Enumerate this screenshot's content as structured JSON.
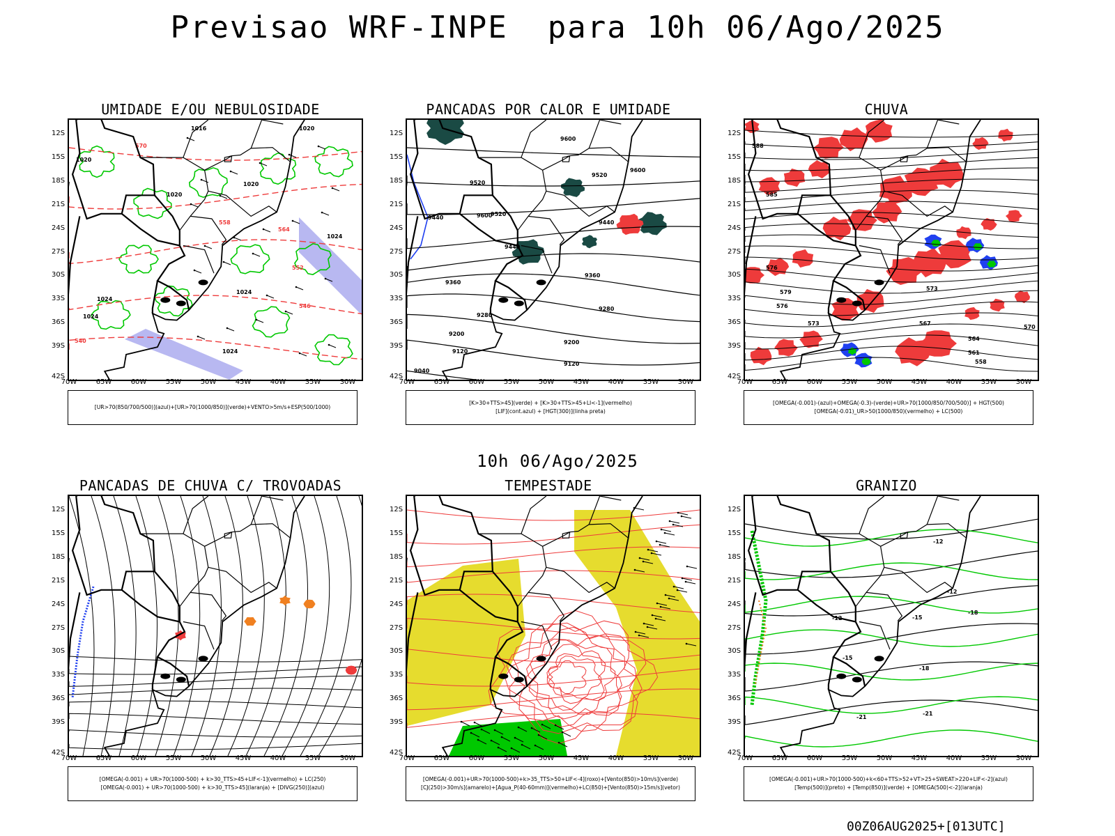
{
  "title": "Previsao WRF-INPE  para 10h 06/Ago/2025",
  "center_date": "10h 06/Ago/2025",
  "footer": "00Z06AUG2025+[013UTC]",
  "axes": {
    "lat_ticks": [
      "12S",
      "15S",
      "18S",
      "21S",
      "24S",
      "27S",
      "30S",
      "33S",
      "36S",
      "39S",
      "42S"
    ],
    "lon_ticks": [
      "70W",
      "65W",
      "60W",
      "55W",
      "50W",
      "45W",
      "40W",
      "35W",
      "30W"
    ]
  },
  "colors": {
    "green": "#00c800",
    "red": "#ee3b3b",
    "blue": "#2040f0",
    "lavender": "#a0a0ec",
    "dark_teal": "#1a4a44",
    "orange": "#f08020",
    "yellow": "#e6dc2e",
    "black": "#000000"
  },
  "panels": [
    {
      "title": "UMIDADE E/OU NEBULOSIDADE",
      "legend": [
        "[UR>70(850/700/500)](azul)+[UR>70(1000/850)](verde)+VENTO>5m/s+ESP(500/1000)"
      ],
      "contour_labels": [
        "1016",
        "1020",
        "1020",
        "1020",
        "1020",
        "1024",
        "1024",
        "1024",
        "1024",
        "1024",
        "570",
        "564",
        "558",
        "552",
        "546",
        "540"
      ]
    },
    {
      "title": "PANCADAS POR CALOR E UMIDADE",
      "legend": [
        "[K>30+TTS>45](verde) + [K>30+TTS>45+LI<-1](vermelho)",
        "[LIF](cont.azul) + [HGT(300)](linha preta)"
      ],
      "contour_labels": [
        "9600",
        "9600",
        "9520",
        "9520",
        "9600",
        "9440",
        "9440",
        "9520",
        "9440",
        "9360",
        "9360",
        "9280",
        "9280",
        "9200",
        "9200",
        "9120",
        "9120",
        "9040"
      ]
    },
    {
      "title": "CHUVA",
      "legend": [
        "[OMEGA(-0.001)-(azul)+OMEGA(-0.3)-(verde)+UR>70(1000/850/700/500)] + HGT(500)",
        "[OMEGA(-0.01)_UR>50(1000/850)(vermelho) + LC(500)"
      ],
      "contour_labels": [
        "588",
        "585",
        "576",
        "579",
        "576",
        "573",
        "570",
        "567",
        "564",
        "561",
        "558",
        "573"
      ]
    },
    {
      "title": "PANCADAS DE CHUVA C/ TROVOADAS",
      "legend": [
        "[OMEGA(-0.001) + UR>70(1000-500) + k>30_TTS>45+LIF<-1](vermelho) + LC(250)",
        "[OMEGA(-0.001) + UR>70(1000-500) + k>30_TTS>45](laranja) + [DIVG(250)](azul)"
      ],
      "contour_labels": []
    },
    {
      "title": "TEMPESTADE",
      "legend": [
        "[OMEGA(-0.001)+UR>70(1000-500)+k>35_TTS>50+LIF<-4](roxo)+[Vento(850)>10m/s](verde)",
        "[CJ(250)>30m/s](amarelo)+[Agua_P(40-60mm)](vermelho)+LC(850)+[Vento(850)>15m/s](vetor)"
      ],
      "contour_labels": []
    },
    {
      "title": "GRANIZO",
      "legend": [
        "[OMEGA(-0.001)+UR>70(1000-500)+k<60+TTS>52+VT>25+SWEAT>220+LIF<-2](azul)",
        "[Temp(500)](preto) + [Temp(850)](verde) + [OMEGA(500)<-2](laranja)"
      ],
      "contour_labels": [
        "-12",
        "-12",
        "-15",
        "-15",
        "-18",
        "-21",
        "-21",
        "-18",
        "-12"
      ]
    }
  ]
}
